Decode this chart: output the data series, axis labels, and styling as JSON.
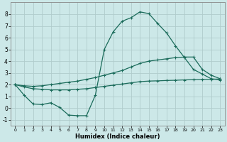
{
  "xlabel": "Humidex (Indice chaleur)",
  "background_color": "#cce8e8",
  "grid_color": "#b0cccc",
  "line_color": "#1a6b5a",
  "xlim": [
    -0.5,
    23.5
  ],
  "ylim": [
    -1.5,
    9.0
  ],
  "yticks": [
    -1,
    0,
    1,
    2,
    3,
    4,
    5,
    6,
    7,
    8
  ],
  "xticks": [
    0,
    1,
    2,
    3,
    4,
    5,
    6,
    7,
    8,
    9,
    10,
    11,
    12,
    13,
    14,
    15,
    16,
    17,
    18,
    19,
    20,
    21,
    22,
    23
  ],
  "line1_x": [
    0,
    1,
    2,
    3,
    4,
    5,
    6,
    7,
    8,
    9,
    10,
    11,
    12,
    13,
    14,
    15,
    16,
    17,
    18,
    19,
    20,
    21,
    22,
    23
  ],
  "line1_y": [
    2.0,
    1.1,
    0.35,
    0.3,
    0.45,
    0.05,
    -0.6,
    -0.65,
    -0.65,
    1.1,
    5.0,
    6.5,
    7.4,
    7.7,
    8.2,
    8.05,
    7.2,
    6.4,
    5.3,
    4.3,
    3.3,
    2.9,
    2.5,
    2.4
  ],
  "line2_x": [
    0,
    1,
    2,
    3,
    4,
    5,
    6,
    7,
    8,
    9,
    10,
    11,
    12,
    13,
    14,
    15,
    16,
    17,
    18,
    19,
    20,
    21,
    22,
    23
  ],
  "line2_y": [
    2.0,
    1.9,
    1.85,
    1.9,
    2.0,
    2.1,
    2.2,
    2.3,
    2.45,
    2.6,
    2.8,
    3.0,
    3.2,
    3.5,
    3.8,
    4.0,
    4.1,
    4.2,
    4.3,
    4.35,
    4.35,
    3.3,
    2.8,
    2.5
  ],
  "line3_x": [
    0,
    1,
    2,
    3,
    4,
    5,
    6,
    7,
    8,
    9,
    10,
    11,
    12,
    13,
    14,
    15,
    16,
    17,
    18,
    19,
    20,
    21,
    22,
    23
  ],
  "line3_y": [
    2.0,
    1.8,
    1.65,
    1.6,
    1.55,
    1.55,
    1.55,
    1.6,
    1.65,
    1.75,
    1.85,
    1.95,
    2.05,
    2.15,
    2.25,
    2.3,
    2.32,
    2.35,
    2.37,
    2.4,
    2.42,
    2.44,
    2.45,
    2.48
  ],
  "marker": "+",
  "markersize": 3,
  "linewidth": 0.9
}
